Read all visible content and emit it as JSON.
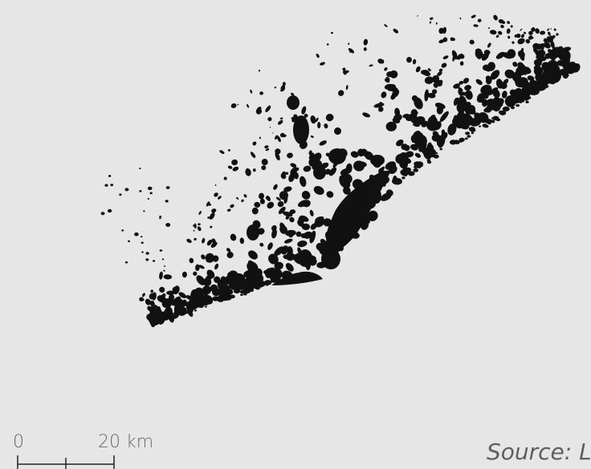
{
  "map": {
    "ink_color": "#111111",
    "background_color": "#e6e6e6"
  },
  "scale": {
    "label_zero": "0",
    "label_distance": "20 km"
  },
  "source": {
    "text": "Source: L"
  }
}
